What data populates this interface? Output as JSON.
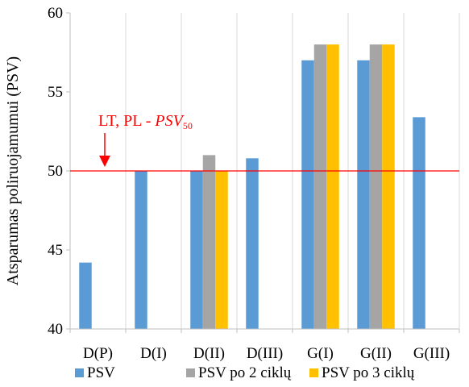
{
  "chart_data": {
    "type": "bar",
    "title": "",
    "xlabel": "",
    "ylabel": "Atsparumas poliruojamumui (PSV)",
    "ylim": [
      40,
      60
    ],
    "yticks": [
      40,
      45,
      50,
      55,
      60
    ],
    "grid": "vertical category separators",
    "legend_position": "bottom",
    "categories": [
      "D(P)",
      "D(I)",
      "D(II)",
      "D(III)",
      "G(I)",
      "G(II)",
      "G(III)"
    ],
    "series": [
      {
        "name": "PSV",
        "color": "#5b9bd5",
        "values": [
          44.2,
          50,
          50,
          50.8,
          57,
          57,
          53.4
        ]
      },
      {
        "name": "PSV po 2 ciklų",
        "color": "#a5a5a5",
        "values": [
          null,
          null,
          51,
          null,
          58,
          58,
          null
        ]
      },
      {
        "name": "PSV  po 3 ciklų",
        "color": "#ffc000",
        "values": [
          null,
          null,
          50,
          null,
          58,
          58,
          null
        ]
      }
    ],
    "reference_line": {
      "value": 50,
      "color": "#ff0000",
      "label_prefix": "LT, PL - ",
      "label_var": "PSV",
      "label_sub": "50"
    }
  }
}
